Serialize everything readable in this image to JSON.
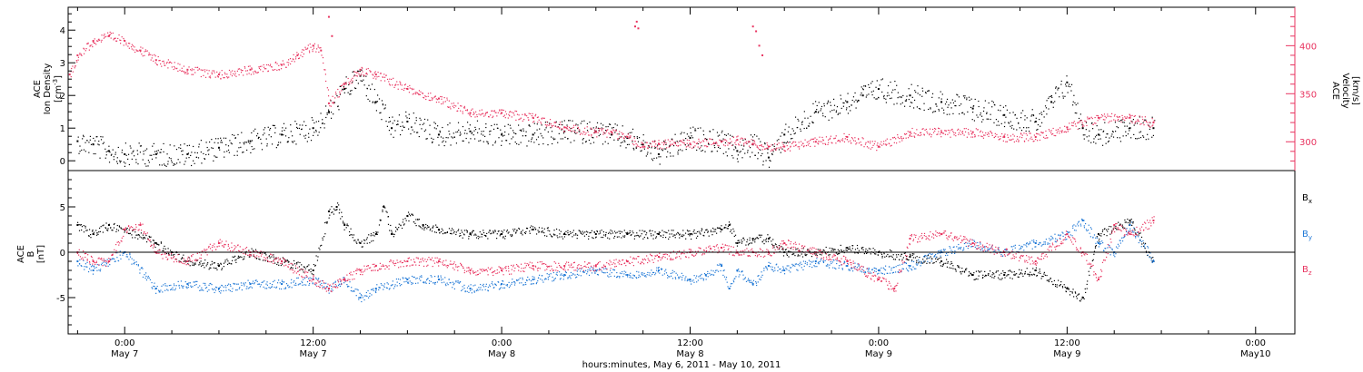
{
  "colors": {
    "black": "#000000",
    "pink": "#e8335f",
    "blue": "#1f78d6"
  },
  "x_axis": {
    "title": "hours:minutes, May  6, 2011 - May 10, 2011",
    "ticks": [
      {
        "t": 24,
        "time": "0:00",
        "day": "May 7"
      },
      {
        "t": 36,
        "time": "12:00",
        "day": "May 7"
      },
      {
        "t": 48,
        "time": "0:00",
        "day": "May 8"
      },
      {
        "t": 60,
        "time": "12:00",
        "day": "May 8"
      },
      {
        "t": 72,
        "time": "0:00",
        "day": "May 9"
      },
      {
        "t": 84,
        "time": "12:00",
        "day": "May 9"
      },
      {
        "t": 96,
        "time": "0:00",
        "day": "May10"
      }
    ],
    "range_hours_from_may6": [
      20.4,
      98.5
    ]
  },
  "top_panel": {
    "left_axis": {
      "label_line1": "ACE",
      "label_line2": "Ion Density",
      "unit_prefix": "[cm",
      "unit_sup": "-3",
      "unit_suffix": "]",
      "ticks": [
        "0",
        "1",
        "2",
        "3",
        "4"
      ],
      "range": [
        -0.3,
        4.7
      ]
    },
    "right_axis": {
      "label_line1": "ACE",
      "label_line2": "Velocity",
      "unit": "[km/s]",
      "ticks": [
        "300",
        "350",
        "400"
      ],
      "range": [
        270,
        440
      ]
    }
  },
  "bottom_panel": {
    "axis": {
      "label_line1": "ACE",
      "label_line2": "B",
      "unit": "[nT]",
      "ticks": [
        "5",
        "0",
        "-5"
      ],
      "range": [
        -9,
        9
      ]
    },
    "legend": [
      {
        "base": "B",
        "sub": "x",
        "color": "#000000"
      },
      {
        "base": "B",
        "sub": "y",
        "color": "#1f78d6"
      },
      {
        "base": "B",
        "sub": "z",
        "color": "#e8335f"
      }
    ]
  },
  "chart_data": [
    {
      "type": "scatter",
      "panel": "top",
      "x_unit": "hours since 2011-05-06 00:00 UT",
      "series": [
        {
          "axis": "left",
          "color": "#000000",
          "x": [
            21,
            22,
            23,
            24,
            26,
            28,
            30,
            32,
            34,
            36,
            37,
            38,
            39,
            40,
            41,
            42,
            44,
            46,
            48,
            50,
            52,
            54,
            55,
            56,
            57,
            58,
            60,
            62,
            63,
            64,
            65,
            66,
            68,
            70,
            71,
            72,
            74,
            76,
            78,
            80,
            82,
            83,
            84,
            85,
            86,
            88,
            89.5
          ],
          "y": [
            0.6,
            0.5,
            0.3,
            0.2,
            0.2,
            0.2,
            0.4,
            0.6,
            0.8,
            1.0,
            1.5,
            2.2,
            2.6,
            1.8,
            1.0,
            1.2,
            0.8,
            0.9,
            0.8,
            0.8,
            0.9,
            0.9,
            0.8,
            0.7,
            0.5,
            0.2,
            0.7,
            0.6,
            0.3,
            0.5,
            0.1,
            0.8,
            1.5,
            1.8,
            2.0,
            2.2,
            2.0,
            1.8,
            1.6,
            1.4,
            1.2,
            1.8,
            2.4,
            1.0,
            0.8,
            1.0,
            1.0
          ]
        },
        {
          "axis": "right",
          "color": "#e8335f",
          "x": [
            20.5,
            21,
            22,
            23,
            24,
            25,
            26,
            28,
            30,
            32,
            34,
            35,
            36,
            36.5,
            37,
            38,
            39,
            40,
            42,
            44,
            46,
            48,
            50,
            52,
            54,
            55,
            56,
            57,
            58,
            60,
            62,
            63,
            64,
            65,
            66,
            68,
            70,
            72,
            74,
            76,
            78,
            80,
            82,
            84,
            86,
            88,
            89.5
          ],
          "y": [
            370,
            390,
            405,
            410,
            405,
            395,
            385,
            375,
            370,
            375,
            380,
            390,
            400,
            395,
            340,
            360,
            375,
            370,
            355,
            345,
            330,
            330,
            325,
            315,
            310,
            310,
            305,
            295,
            298,
            298,
            300,
            302,
            298,
            295,
            295,
            300,
            305,
            295,
            310,
            310,
            310,
            305,
            305,
            315,
            325,
            325,
            320
          ]
        },
        {
          "axis": "right",
          "color": "#e8335f",
          "note_points": true,
          "x": [
            56.5,
            56.6,
            56.7,
            64,
            64.2,
            64.4,
            64.6,
            37,
            37.2
          ],
          "y": [
            420,
            425,
            418,
            420,
            415,
            400,
            390,
            430,
            410
          ]
        }
      ]
    },
    {
      "type": "scatter",
      "panel": "bottom",
      "x_unit": "hours since 2011-05-06 00:00 UT",
      "series": [
        {
          "name": "Bx",
          "color": "#000000",
          "x": [
            21,
            22,
            23,
            24,
            26,
            27,
            28,
            30,
            32,
            34,
            36,
            37,
            37.5,
            38,
            39,
            40,
            40.5,
            41,
            42,
            43,
            44,
            46,
            48,
            50,
            52,
            54,
            56,
            58,
            60,
            62,
            62.5,
            63,
            64,
            65,
            66,
            68,
            70,
            72,
            74,
            76,
            78,
            80,
            82,
            84,
            85,
            86,
            88,
            89.5
          ],
          "y": [
            3,
            2,
            3,
            2.5,
            1,
            0,
            -1,
            -1.5,
            0,
            -1,
            -2,
            4.5,
            5,
            3,
            1,
            2,
            5,
            2,
            4,
            3,
            2.5,
            2,
            2,
            2.5,
            2,
            2,
            2,
            2,
            2,
            2.5,
            3,
            1,
            1.5,
            1.5,
            0,
            0,
            0.5,
            0,
            -0.5,
            -1,
            -2.5,
            -2.5,
            -2,
            -4,
            -5,
            2,
            3.5,
            -1
          ]
        },
        {
          "name": "By",
          "color": "#1f78d6",
          "x": [
            21,
            22,
            23,
            24,
            26,
            28,
            30,
            32,
            34,
            36,
            37,
            38,
            39,
            40,
            42,
            44,
            46,
            48,
            50,
            52,
            54,
            56,
            58,
            60,
            61,
            62,
            62.5,
            63,
            64,
            65,
            66,
            68,
            70,
            72,
            74,
            76,
            78,
            80,
            82,
            84,
            85,
            86,
            87,
            88,
            89.5
          ],
          "y": [
            -1,
            -2,
            -1,
            0,
            -4,
            -3.5,
            -4,
            -3.5,
            -3.5,
            -3,
            -4,
            -3,
            -5,
            -4,
            -3,
            -3,
            -4,
            -3.5,
            -3,
            -2.5,
            -2,
            -2.5,
            -2,
            -3,
            -2.5,
            -1.5,
            -4,
            -2,
            -3.5,
            -1.5,
            -2,
            -1,
            -1.5,
            -2,
            -1.5,
            0,
            1,
            0,
            1,
            2,
            3.5,
            1,
            0,
            3,
            -1
          ]
        },
        {
          "name": "Bz",
          "color": "#e8335f",
          "x": [
            21,
            22,
            23,
            24,
            25,
            26,
            28,
            30,
            32,
            34,
            36,
            37,
            38,
            39,
            40,
            42,
            44,
            46,
            48,
            50,
            52,
            54,
            56,
            58,
            60,
            62,
            63,
            64,
            65,
            66,
            68,
            70,
            72,
            73,
            74,
            76,
            78,
            80,
            82,
            84,
            85,
            86,
            87,
            88,
            89.5
          ],
          "y": [
            0,
            -1,
            -1,
            2.5,
            3,
            0,
            -1,
            1,
            0,
            -1,
            -3,
            -4,
            -3,
            -2,
            -1.5,
            -1,
            -1,
            -2,
            -2,
            -1.5,
            -1.5,
            -1.5,
            -1,
            -0.5,
            0,
            0.5,
            0,
            0,
            0,
            1,
            0,
            -1,
            -3,
            -4,
            1.5,
            2,
            1,
            0,
            -1,
            2,
            0,
            -3,
            3,
            2,
            3.5
          ]
        }
      ]
    }
  ]
}
